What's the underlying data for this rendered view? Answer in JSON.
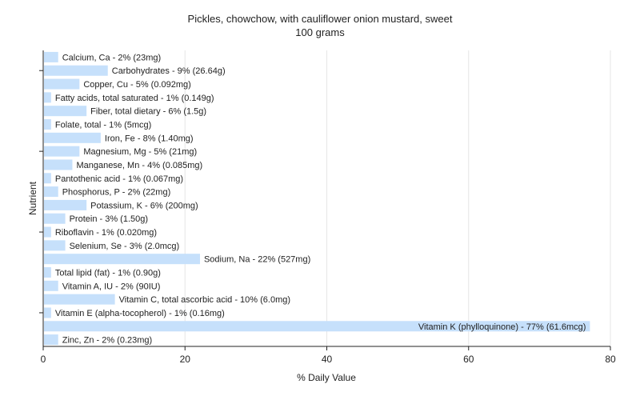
{
  "chart_data": {
    "type": "bar",
    "orientation": "horizontal",
    "title": "Pickles, chowchow, with cauliflower onion mustard, sweet",
    "subtitle": "100 grams",
    "xlabel": "% Daily Value",
    "ylabel": "Nutrient",
    "xlim": [
      0,
      80
    ],
    "xticks": [
      0,
      20,
      40,
      60,
      80
    ],
    "grid": true,
    "bar_color": "#c6e0fb",
    "categories": [
      "Calcium, Ca",
      "Carbohydrates",
      "Copper, Cu",
      "Fatty acids, total saturated",
      "Fiber, total dietary",
      "Folate, total",
      "Iron, Fe",
      "Magnesium, Mg",
      "Manganese, Mn",
      "Pantothenic acid",
      "Phosphorus, P",
      "Potassium, K",
      "Protein",
      "Riboflavin",
      "Selenium, Se",
      "Sodium, Na",
      "Total lipid (fat)",
      "Vitamin A, IU",
      "Vitamin C, total ascorbic acid",
      "Vitamin E (alpha-tocopherol)",
      "Vitamin K (phylloquinone)",
      "Zinc, Zn"
    ],
    "values": [
      2,
      9,
      5,
      1,
      6,
      1,
      8,
      5,
      4,
      1,
      2,
      6,
      3,
      1,
      3,
      22,
      1,
      2,
      10,
      1,
      77,
      2
    ],
    "data_labels": [
      "Calcium, Ca - 2% (23mg)",
      "Carbohydrates - 9% (26.64g)",
      "Copper, Cu - 5% (0.092mg)",
      "Fatty acids, total saturated - 1% (0.149g)",
      "Fiber, total dietary - 6% (1.5g)",
      "Folate, total - 1% (5mcg)",
      "Iron, Fe - 8% (1.40mg)",
      "Magnesium, Mg - 5% (21mg)",
      "Manganese, Mn - 4% (0.085mg)",
      "Pantothenic acid - 1% (0.067mg)",
      "Phosphorus, P - 2% (22mg)",
      "Potassium, K - 6% (200mg)",
      "Protein - 3% (1.50g)",
      "Riboflavin - 1% (0.020mg)",
      "Selenium, Se - 3% (2.0mcg)",
      "Sodium, Na - 22% (527mg)",
      "Total lipid (fat) - 1% (0.90g)",
      "Vitamin A, IU - 2% (90IU)",
      "Vitamin C, total ascorbic acid - 10% (6.0mg)",
      "Vitamin E (alpha-tocopherol) - 1% (0.16mg)",
      "Vitamin K (phylloquinone) - 77% (61.6mcg)",
      "Zinc, Zn - 2% (0.23mg)"
    ]
  }
}
